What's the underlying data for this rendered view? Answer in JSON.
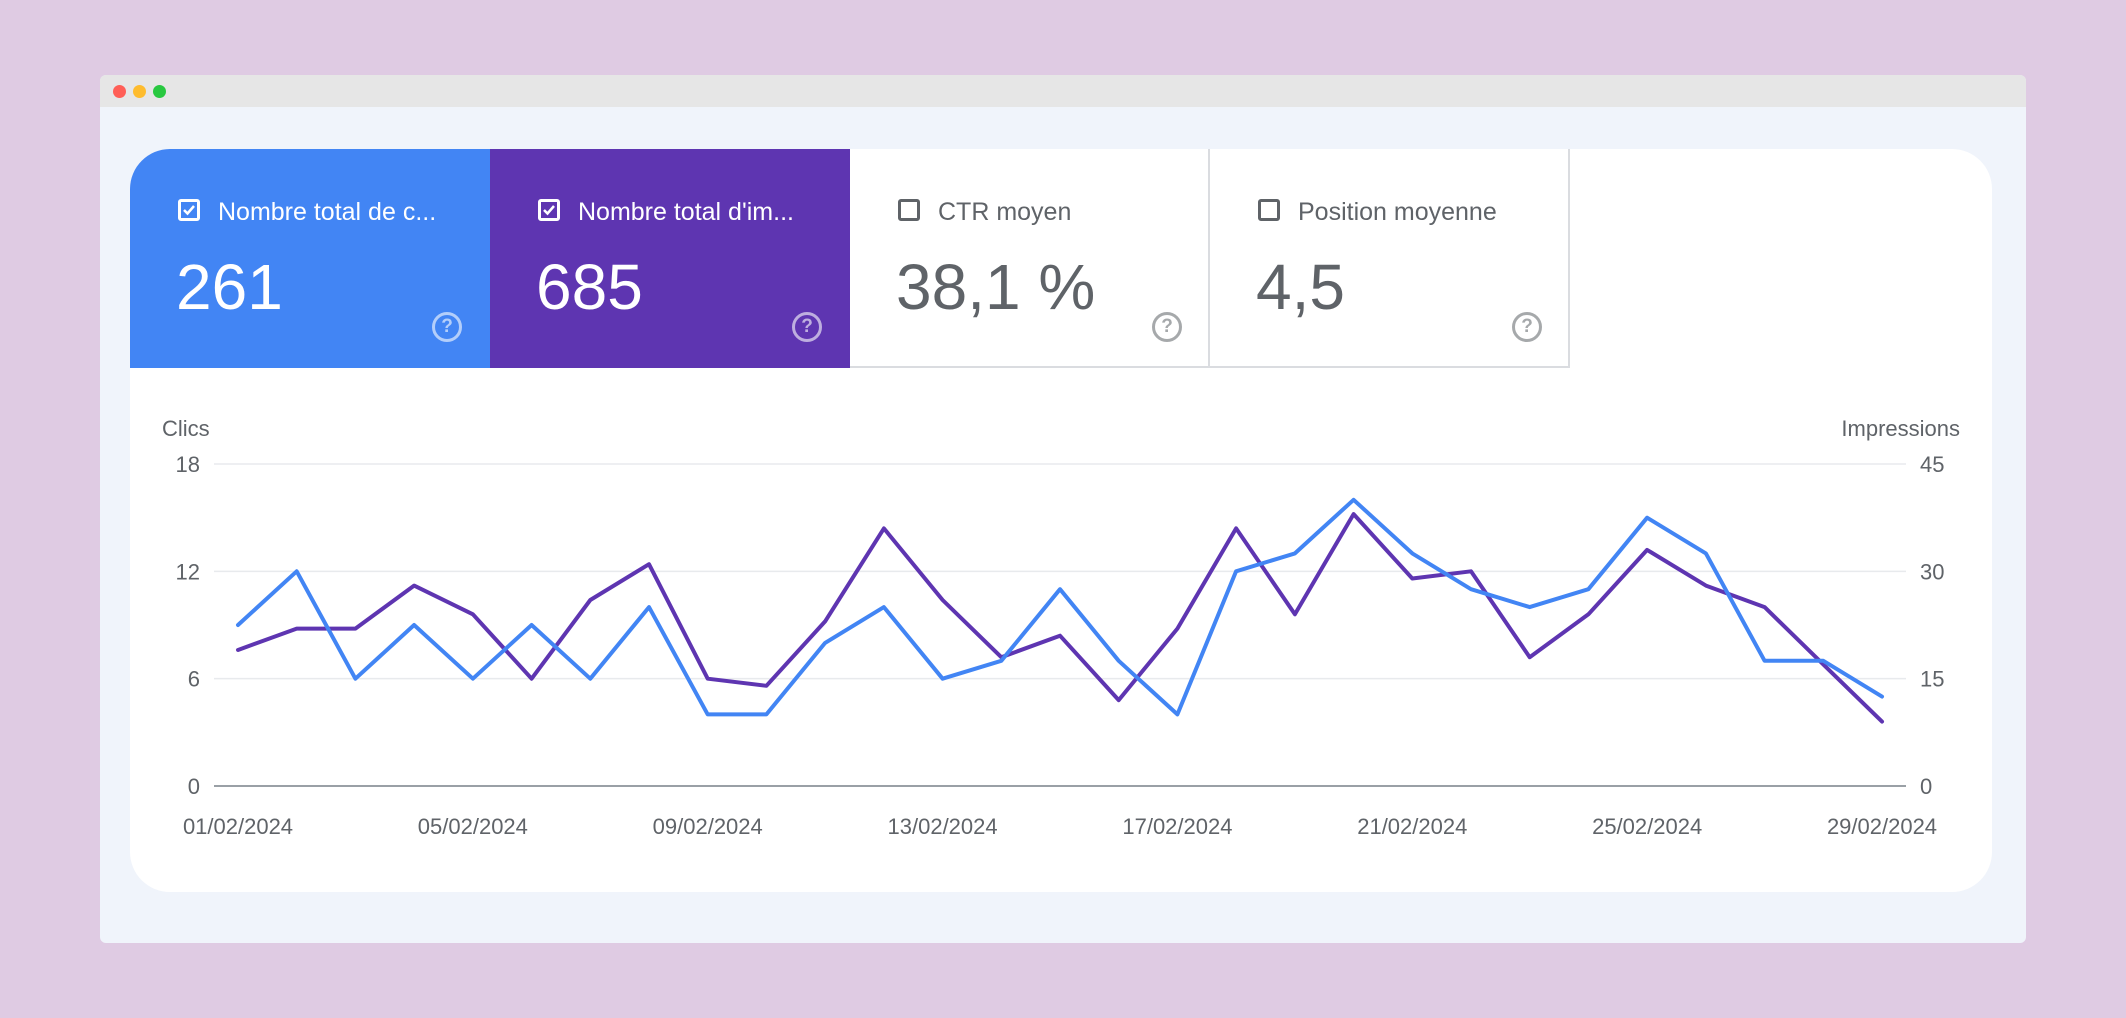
{
  "window": {
    "controls": [
      "close",
      "minimize",
      "maximize"
    ]
  },
  "tabs": [
    {
      "label": "Nombre total de c...",
      "value": "261",
      "checked": true,
      "color": "#4285f4",
      "help_icon": "help-circle-icon"
    },
    {
      "label": "Nombre total d'im...",
      "value": "685",
      "checked": true,
      "color": "#5e35b1",
      "help_icon": "help-circle-icon"
    },
    {
      "label": "CTR moyen",
      "value": "38,1 %",
      "checked": false,
      "color": "#ffffff",
      "help_icon": "help-circle-icon"
    },
    {
      "label": "Position moyenne",
      "value": "4,5",
      "checked": false,
      "color": "#ffffff",
      "help_icon": "help-circle-icon"
    }
  ],
  "chart_data": {
    "type": "line",
    "ylabel_left": "Clics",
    "ylabel_right": "Impressions",
    "ylim_left": [
      0,
      18
    ],
    "ylim_right": [
      0,
      45
    ],
    "yticks_left": [
      "0",
      "6",
      "12",
      "18"
    ],
    "yticks_right": [
      "0",
      "15",
      "30",
      "45"
    ],
    "xtick_labels": [
      "01/02/2024",
      "05/02/2024",
      "09/02/2024",
      "13/02/2024",
      "17/02/2024",
      "21/02/2024",
      "25/02/2024",
      "29/02/2024"
    ],
    "x": [
      "01/02/2024",
      "02/02/2024",
      "03/02/2024",
      "04/02/2024",
      "05/02/2024",
      "06/02/2024",
      "07/02/2024",
      "08/02/2024",
      "09/02/2024",
      "10/02/2024",
      "11/02/2024",
      "12/02/2024",
      "13/02/2024",
      "14/02/2024",
      "15/02/2024",
      "16/02/2024",
      "17/02/2024",
      "18/02/2024",
      "19/02/2024",
      "20/02/2024",
      "21/02/2024",
      "22/02/2024",
      "23/02/2024",
      "24/02/2024",
      "25/02/2024",
      "26/02/2024",
      "27/02/2024",
      "28/02/2024",
      "29/02/2024"
    ],
    "grid": true,
    "series": [
      {
        "axis": "left",
        "color": "#4285f4",
        "values": [
          9,
          12,
          6,
          9,
          6,
          9,
          6,
          10,
          4,
          4,
          8,
          10,
          6,
          7,
          11,
          7,
          4,
          12,
          13,
          16,
          13,
          11,
          10,
          11,
          15,
          13,
          7,
          7,
          5
        ]
      },
      {
        "axis": "right",
        "color": "#5e35b1",
        "values": [
          19,
          22,
          22,
          28,
          24,
          15,
          26,
          31,
          15,
          14,
          23,
          36,
          26,
          18,
          21,
          12,
          22,
          36,
          24,
          38,
          29,
          30,
          18,
          24,
          33,
          28,
          25,
          17,
          9
        ]
      }
    ]
  }
}
